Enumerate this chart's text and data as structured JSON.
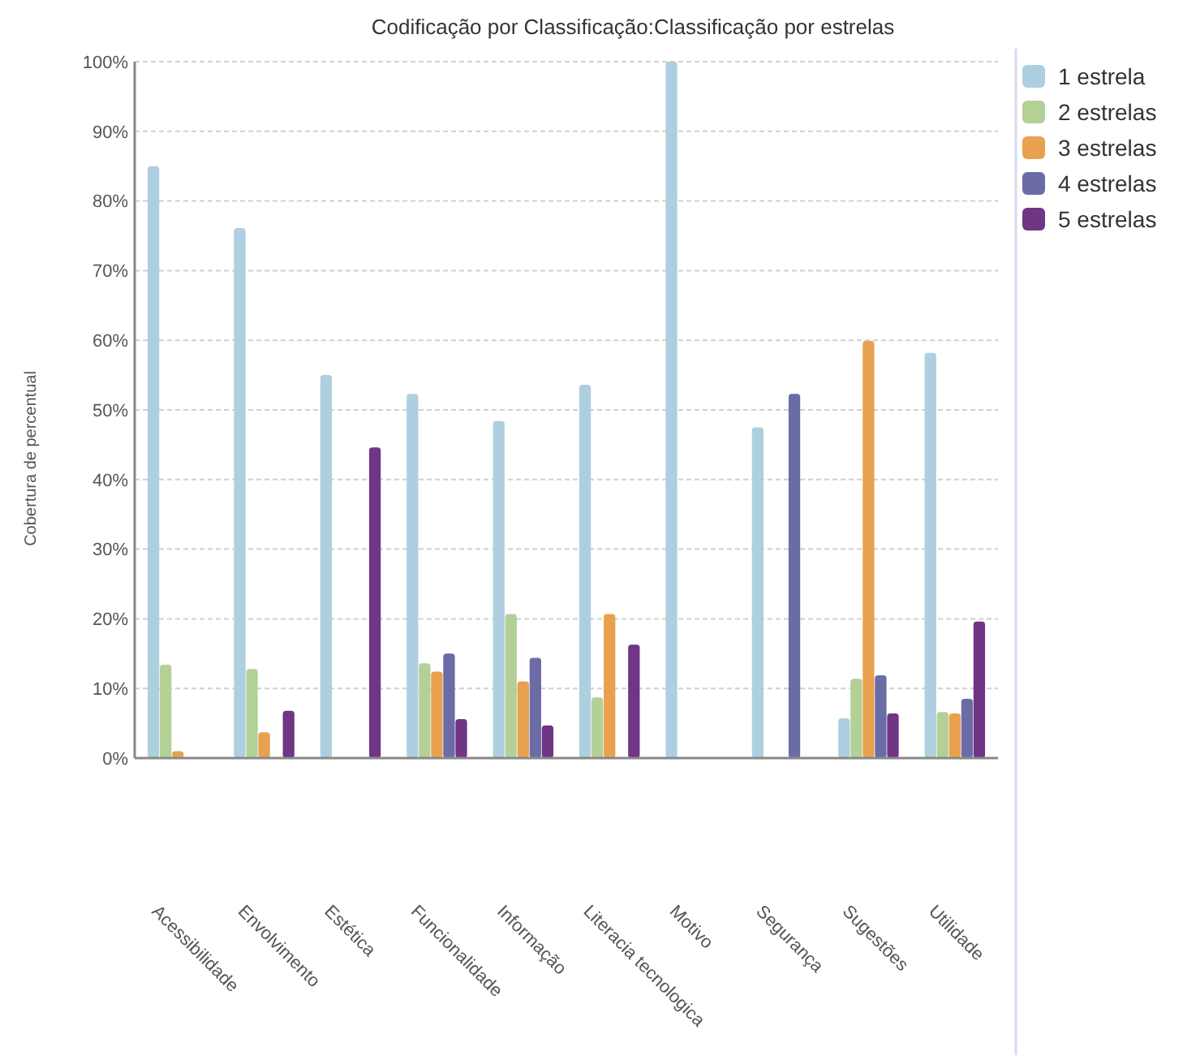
{
  "chart_data": {
    "type": "bar",
    "title": "Codificação por Classificação:Classificação por estrelas",
    "ylabel": "Cobertura de percentual",
    "categories": [
      "Acessibilidade",
      "Envolvimento",
      "Estética",
      "Funcionalidade",
      "Informação",
      "Literacia tecnologica",
      "Motivo",
      "Segurança",
      "Sugestões",
      "Utilidade"
    ],
    "series": [
      {
        "name": "1 estrela",
        "color": "#aecfdf",
        "values": [
          85.0,
          76.1,
          55.0,
          52.3,
          48.4,
          53.6,
          100,
          47.5,
          5.7,
          58.2
        ]
      },
      {
        "name": "2 estrelas",
        "color": "#b3d196",
        "values": [
          13.4,
          12.8,
          null,
          13.6,
          20.7,
          8.7,
          null,
          null,
          11.4,
          6.6
        ]
      },
      {
        "name": "3 estrelas",
        "color": "#e8a14f",
        "values": [
          1.0,
          3.7,
          null,
          12.4,
          11.0,
          20.7,
          null,
          null,
          59.9,
          6.4
        ]
      },
      {
        "name": "4 estrelas",
        "color": "#6b6ca6",
        "values": [
          null,
          null,
          null,
          15.0,
          14.4,
          null,
          null,
          52.3,
          11.9,
          8.5
        ]
      },
      {
        "name": "5 estrelas",
        "color": "#703585",
        "values": [
          null,
          6.8,
          44.6,
          5.6,
          4.7,
          16.3,
          null,
          null,
          6.4,
          19.6
        ]
      }
    ],
    "ylim": [
      0,
      100
    ],
    "yticks": [
      {
        "value": 0,
        "label": "0%"
      },
      {
        "value": 10,
        "label": "10%"
      },
      {
        "value": 20,
        "label": "20%"
      },
      {
        "value": 30,
        "label": "30%"
      },
      {
        "value": 40,
        "label": "40%"
      },
      {
        "value": 50,
        "label": "50%"
      },
      {
        "value": 60,
        "label": "60%"
      },
      {
        "value": 70,
        "label": "70%"
      },
      {
        "value": 80,
        "label": "80%"
      },
      {
        "value": 90,
        "label": "90%"
      },
      {
        "value": 100,
        "label": "100%"
      }
    ],
    "grid": "y",
    "legend": "top right"
  }
}
